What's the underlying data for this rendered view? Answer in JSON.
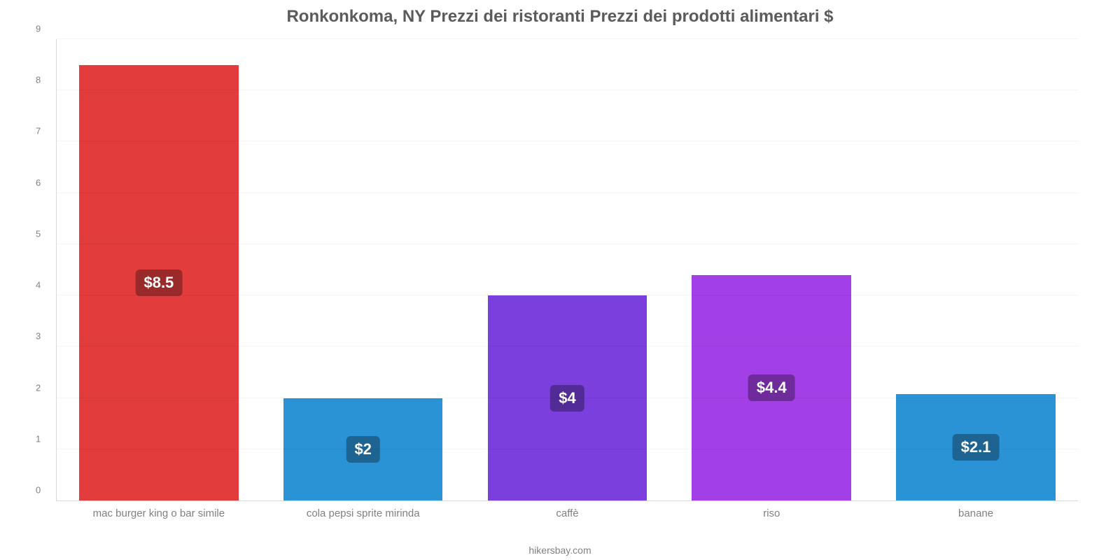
{
  "chart": {
    "type": "bar",
    "title": "Ronkonkoma, NY Prezzi dei ristoranti Prezzi dei prodotti alimentari $",
    "title_fontsize": 24,
    "title_color": "#5b5b5b",
    "footer": "hikersbay.com",
    "footer_fontsize": 14,
    "footer_color": "#808080",
    "background_color": "#ffffff",
    "grid_color": "rgba(0,0,0,0.04)",
    "axis_color": "#d9d9d9",
    "tick_color": "#808080",
    "tick_fontsize": 13,
    "xlabel_fontsize": 15,
    "xlabel_color": "#808080",
    "bar_label_fontsize": 22,
    "bar_label_color": "#ffffff",
    "y": {
      "min": 0,
      "max": 9,
      "step": 1
    },
    "bar_width_frac_of_slot": 0.78,
    "label_bg_darken": 0.32,
    "categories": [
      {
        "name": "mac burger king o bar simile",
        "value": 8.5,
        "label": "$8.5",
        "color": "#e23c3c"
      },
      {
        "name": "cola pepsi sprite mirinda",
        "value": 2.0,
        "label": "$2",
        "color": "#2a93d6"
      },
      {
        "name": "caffè",
        "value": 4.0,
        "label": "$4",
        "color": "#7a3fdc"
      },
      {
        "name": "riso",
        "value": 4.4,
        "label": "$4.4",
        "color": "#a33fe6"
      },
      {
        "name": "banane",
        "value": 2.07,
        "label": "$2.1",
        "color": "#2a93d6"
      }
    ]
  }
}
